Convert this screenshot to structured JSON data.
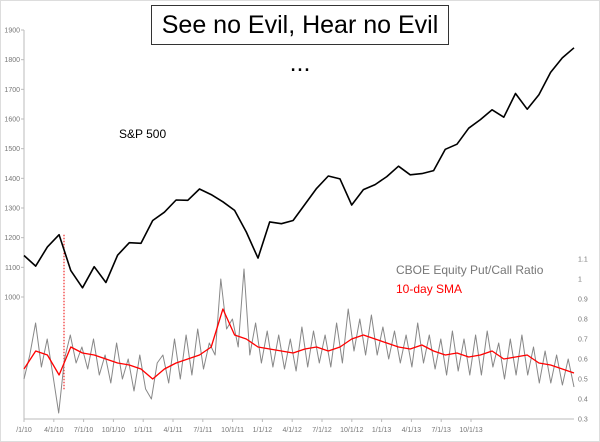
{
  "chart_data": {
    "type": "line",
    "title": "See no Evil, Hear no Evil ...",
    "x_tick_labels": [
      "/1/10",
      "4/1/10",
      "7/1/10",
      "10/1/10",
      "1/1/11",
      "4/1/11",
      "7/1/11",
      "10/1/11",
      "1/1/12",
      "4/1/12",
      "7/1/12",
      "10/1/12",
      "1/1/13",
      "4/1/13",
      "7/1/13",
      "10/1/13"
    ],
    "left_axis": {
      "ylim": [
        1000,
        1900
      ],
      "ticks": [
        1000,
        1100,
        1200,
        1300,
        1400,
        1500,
        1600,
        1700,
        1800,
        1900
      ]
    },
    "right_axis": {
      "ylim": [
        0.3,
        1.1
      ],
      "ticks": [
        "0.3",
        "0.4",
        "0.5",
        "0.6",
        "0.7",
        "0.8",
        "0.9",
        "1",
        "1.1"
      ]
    },
    "grid": false,
    "series": [
      {
        "name": "S&P 500",
        "axis": "left",
        "color": "#000000",
        "values": [
          1140,
          1104,
          1169,
          1210,
          1089,
          1031,
          1102,
          1049,
          1141,
          1183,
          1181,
          1258,
          1286,
          1327,
          1326,
          1364,
          1345,
          1321,
          1292,
          1219,
          1131,
          1253,
          1247,
          1258,
          1312,
          1366,
          1408,
          1398,
          1310,
          1362,
          1379,
          1406,
          1441,
          1412,
          1416,
          1426,
          1498,
          1515,
          1569,
          1598,
          1631,
          1606,
          1686,
          1633,
          1682,
          1757,
          1806,
          1840
        ]
      },
      {
        "name": "CBOE Equity Put/Call Ratio",
        "axis": "right",
        "color": "#888888",
        "values": [
          0.5,
          0.62,
          0.78,
          0.56,
          0.7,
          0.52,
          0.33,
          0.6,
          0.72,
          0.58,
          0.66,
          0.55,
          0.7,
          0.52,
          0.62,
          0.48,
          0.68,
          0.5,
          0.6,
          0.44,
          0.62,
          0.45,
          0.4,
          0.58,
          0.62,
          0.48,
          0.7,
          0.5,
          0.72,
          0.52,
          0.75,
          0.55,
          0.68,
          0.62,
          1.0,
          0.75,
          0.8,
          0.66,
          1.05,
          0.62,
          0.78,
          0.58,
          0.74,
          0.56,
          0.72,
          0.55,
          0.7,
          0.54,
          0.76,
          0.56,
          0.74,
          0.58,
          0.72,
          0.56,
          0.78,
          0.58,
          0.85,
          0.64,
          0.8,
          0.62,
          0.82,
          0.62,
          0.76,
          0.6,
          0.74,
          0.58,
          0.72,
          0.56,
          0.78,
          0.58,
          0.72,
          0.55,
          0.7,
          0.52,
          0.74,
          0.54,
          0.7,
          0.52,
          0.72,
          0.52,
          0.74,
          0.56,
          0.68,
          0.5,
          0.7,
          0.52,
          0.72,
          0.52,
          0.66,
          0.48,
          0.64,
          0.48,
          0.62,
          0.47,
          0.6,
          0.46
        ]
      },
      {
        "name": "10-day SMA",
        "axis": "right",
        "color": "#ff0000",
        "values": [
          0.55,
          0.64,
          0.62,
          0.52,
          0.66,
          0.63,
          0.62,
          0.6,
          0.58,
          0.57,
          0.55,
          0.5,
          0.55,
          0.58,
          0.6,
          0.62,
          0.66,
          0.85,
          0.72,
          0.7,
          0.66,
          0.65,
          0.64,
          0.63,
          0.65,
          0.66,
          0.64,
          0.66,
          0.7,
          0.72,
          0.7,
          0.68,
          0.66,
          0.65,
          0.67,
          0.64,
          0.62,
          0.63,
          0.61,
          0.62,
          0.64,
          0.6,
          0.61,
          0.62,
          0.58,
          0.57,
          0.55,
          0.53
        ]
      }
    ],
    "annotations": [
      "S&P 500",
      "CBOE Equity Put/Call Ratio",
      "10-day SMA"
    ]
  }
}
